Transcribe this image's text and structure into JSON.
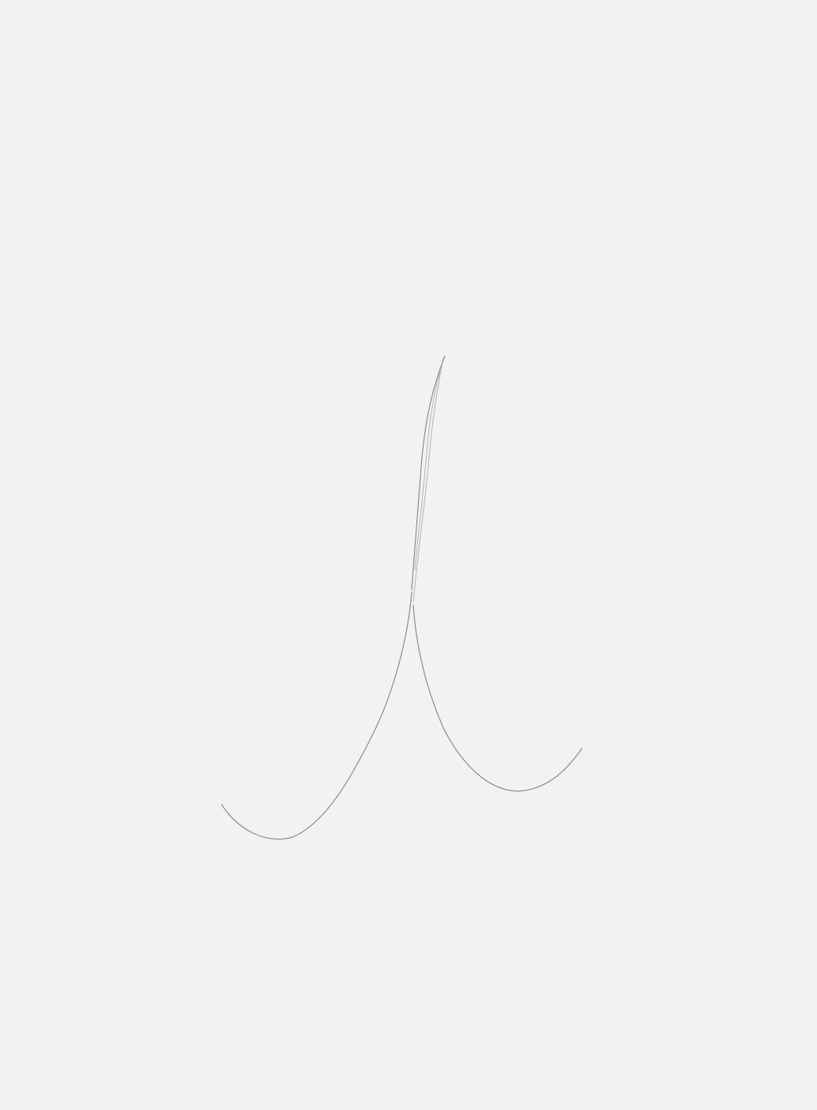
{
  "canvas": {
    "background_color": "#f2f2f2",
    "stroke_color": "#8c8c8c",
    "style": "pencil line sketch"
  }
}
